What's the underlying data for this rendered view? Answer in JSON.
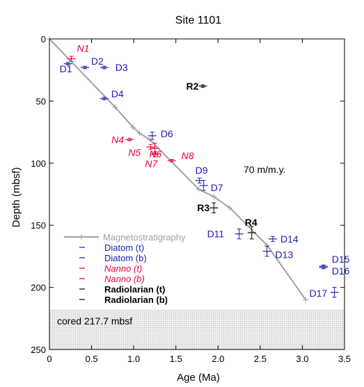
{
  "chart_data": {
    "type": "scatter",
    "title": "Site 1101",
    "xlabel": "Age (Ma)",
    "ylabel": "Depth (mbsf)",
    "xlim": [
      0,
      3.5
    ],
    "ylim": [
      250,
      0
    ],
    "x_ticks": [
      "0",
      "0.5",
      "1.0",
      "1.5",
      "2.0",
      "2.5",
      "3.0",
      "3.5"
    ],
    "y_ticks": [
      "0",
      "50",
      "100",
      "150",
      "200",
      "250"
    ],
    "rate_label": "70 m/m.y.",
    "cored_label": "cored  217.7 mbsf",
    "cored_depth": 217.7,
    "colors": {
      "magneto": "#a0a0a0",
      "diatom": "#1a1ab4",
      "nanno": "#e8003c",
      "radiolarian": "#000000",
      "cored_fill": "#e6e6e6"
    },
    "magnetostratigraphy": {
      "name": "Magnetostratigraphy",
      "points": [
        {
          "x": 0,
          "y": 0
        },
        {
          "x": 0.78,
          "y": 55
        },
        {
          "x": 0.99,
          "y": 71
        },
        {
          "x": 1.07,
          "y": 76
        },
        {
          "x": 1.19,
          "y": 81
        },
        {
          "x": 1.77,
          "y": 121
        },
        {
          "x": 1.95,
          "y": 127
        },
        {
          "x": 2.14,
          "y": 136
        },
        {
          "x": 2.58,
          "y": 166
        },
        {
          "x": 3.04,
          "y": 210
        }
      ]
    },
    "datums": [
      {
        "label": "N1",
        "group": "nanno",
        "x": 0.26,
        "y": 16,
        "yerr": 2
      },
      {
        "label": "D1",
        "group": "diatom",
        "x": 0.22,
        "y": 20,
        "yerr": 1
      },
      {
        "label": "D2",
        "group": "diatom",
        "x": 0.42,
        "y": 23,
        "yerr": 1
      },
      {
        "label": "D3",
        "group": "diatom",
        "x": 0.65,
        "y": 23,
        "yerr": 1
      },
      {
        "label": "D4",
        "group": "diatom",
        "x": 0.65,
        "y": 48,
        "yerr": 1
      },
      {
        "label": "N4",
        "group": "nanno",
        "x": 0.95,
        "y": 81,
        "yerr": 1
      },
      {
        "label": "D6",
        "group": "diatom",
        "x": 1.22,
        "y": 78,
        "yerr": 3
      },
      {
        "label": "N5",
        "group": "nanno",
        "x": 1.2,
        "y": 87,
        "yerr": 2
      },
      {
        "label": "N6",
        "group": "nanno",
        "x": 1.25,
        "y": 88,
        "yerr": 4
      },
      {
        "label": "N7",
        "group": "nanno",
        "x": 1.25,
        "y": 93,
        "yerr": 2
      },
      {
        "label": "N8",
        "group": "nanno",
        "x": 1.45,
        "y": 98,
        "yerr": 1
      },
      {
        "label": "D9",
        "group": "diatom",
        "x": 1.78,
        "y": 114,
        "yerr": 2
      },
      {
        "label": "D7",
        "group": "diatom",
        "x": 1.83,
        "y": 118,
        "yerr": 4
      },
      {
        "label": "R2",
        "group": "radiolarian",
        "x": 1.82,
        "y": 38,
        "yerr": 1
      },
      {
        "label": "R3",
        "group": "radiolarian",
        "x": 1.95,
        "y": 136,
        "yerr": 4
      },
      {
        "label": "R4",
        "group": "radiolarian",
        "x": 2.4,
        "y": 156,
        "yerr": 5
      },
      {
        "label": "D11",
        "group": "diatom",
        "x": 2.25,
        "y": 157,
        "yerr": 4
      },
      {
        "label": "D14",
        "group": "diatom",
        "x": 2.65,
        "y": 161,
        "yerr": 2
      },
      {
        "label": "D13",
        "group": "diatom",
        "x": 2.58,
        "y": 171,
        "yerr": 4
      },
      {
        "label": "D15",
        "group": "diatom",
        "x": 3.25,
        "y": 183,
        "yerr": 1
      },
      {
        "label": "D16",
        "group": "diatom",
        "x": 3.25,
        "y": 184,
        "yerr": 1
      },
      {
        "label": "D17",
        "group": "diatom",
        "x": 3.38,
        "y": 204,
        "yerr": 4
      }
    ],
    "legend": [
      {
        "label": "Magnetostratigraphy",
        "group": "magneto"
      },
      {
        "label": "Diatom (t)",
        "group": "diatom"
      },
      {
        "label": "Diatom (b)",
        "group": "diatom"
      },
      {
        "label": "Nanno (t)",
        "group": "nanno"
      },
      {
        "label": "Nanno (b)",
        "group": "nanno"
      },
      {
        "label": "Radiolarian (t)",
        "group": "radiolarian"
      },
      {
        "label": "Radiolarian (b)",
        "group": "radiolarian"
      }
    ]
  }
}
